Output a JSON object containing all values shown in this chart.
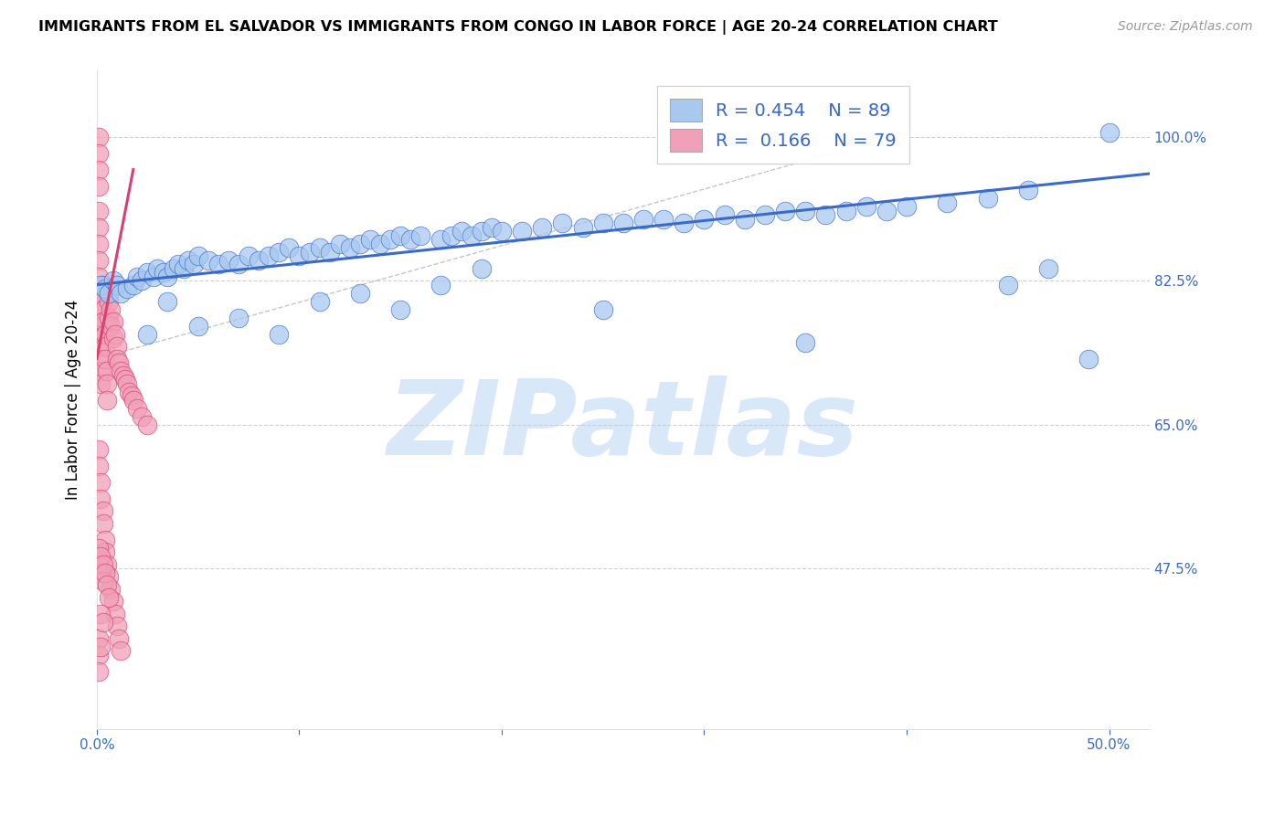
{
  "title": "IMMIGRANTS FROM EL SALVADOR VS IMMIGRANTS FROM CONGO IN LABOR FORCE | AGE 20-24 CORRELATION CHART",
  "source": "Source: ZipAtlas.com",
  "ylabel": "In Labor Force | Age 20-24",
  "xlim": [
    0.0,
    0.52
  ],
  "ylim": [
    0.28,
    1.08
  ],
  "yticks_right": [
    0.475,
    0.65,
    0.825,
    1.0
  ],
  "yticklabels_right": [
    "47.5%",
    "65.0%",
    "82.5%",
    "100.0%"
  ],
  "color_salvador": "#a8c8f0",
  "color_congo": "#f0a0b8",
  "color_trend_salvador": "#3a6bc9",
  "color_trend_congo": "#d94070",
  "color_blue": "#3a6bc9",
  "watermark_color": "#d8e8f8",
  "sal_trend": [
    0.0,
    0.52,
    0.82,
    0.955
  ],
  "con_trend": [
    0.0,
    0.018,
    0.73,
    0.96
  ],
  "ref_line": [
    0.0,
    0.4,
    0.73,
    1.005
  ],
  "sal_x": [
    0.002,
    0.004,
    0.006,
    0.008,
    0.01,
    0.012,
    0.015,
    0.018,
    0.02,
    0.022,
    0.025,
    0.028,
    0.03,
    0.033,
    0.035,
    0.038,
    0.04,
    0.043,
    0.045,
    0.048,
    0.05,
    0.055,
    0.06,
    0.065,
    0.07,
    0.075,
    0.08,
    0.085,
    0.09,
    0.095,
    0.1,
    0.105,
    0.11,
    0.115,
    0.12,
    0.125,
    0.13,
    0.135,
    0.14,
    0.145,
    0.15,
    0.155,
    0.16,
    0.17,
    0.175,
    0.18,
    0.185,
    0.19,
    0.195,
    0.2,
    0.21,
    0.22,
    0.23,
    0.24,
    0.25,
    0.26,
    0.27,
    0.28,
    0.29,
    0.3,
    0.31,
    0.32,
    0.33,
    0.34,
    0.35,
    0.36,
    0.37,
    0.38,
    0.39,
    0.4,
    0.42,
    0.44,
    0.46,
    0.025,
    0.035,
    0.05,
    0.07,
    0.09,
    0.11,
    0.13,
    0.15,
    0.17,
    0.19,
    0.25,
    0.35,
    0.45,
    0.47,
    0.49,
    0.5
  ],
  "sal_y": [
    0.82,
    0.815,
    0.81,
    0.825,
    0.82,
    0.81,
    0.815,
    0.82,
    0.83,
    0.825,
    0.835,
    0.83,
    0.84,
    0.835,
    0.83,
    0.84,
    0.845,
    0.84,
    0.85,
    0.845,
    0.855,
    0.85,
    0.845,
    0.85,
    0.845,
    0.855,
    0.85,
    0.855,
    0.86,
    0.865,
    0.855,
    0.86,
    0.865,
    0.86,
    0.87,
    0.865,
    0.87,
    0.875,
    0.87,
    0.875,
    0.88,
    0.875,
    0.88,
    0.875,
    0.88,
    0.885,
    0.88,
    0.885,
    0.89,
    0.885,
    0.885,
    0.89,
    0.895,
    0.89,
    0.895,
    0.895,
    0.9,
    0.9,
    0.895,
    0.9,
    0.905,
    0.9,
    0.905,
    0.91,
    0.91,
    0.905,
    0.91,
    0.915,
    0.91,
    0.915,
    0.92,
    0.925,
    0.935,
    0.76,
    0.8,
    0.77,
    0.78,
    0.76,
    0.8,
    0.81,
    0.79,
    0.82,
    0.84,
    0.79,
    0.75,
    0.82,
    0.84,
    0.73,
    1.005
  ],
  "con_x": [
    0.001,
    0.001,
    0.001,
    0.001,
    0.001,
    0.001,
    0.001,
    0.001,
    0.001,
    0.001,
    0.002,
    0.002,
    0.002,
    0.002,
    0.002,
    0.002,
    0.002,
    0.003,
    0.003,
    0.003,
    0.003,
    0.004,
    0.004,
    0.004,
    0.005,
    0.005,
    0.005,
    0.006,
    0.006,
    0.007,
    0.007,
    0.008,
    0.008,
    0.009,
    0.01,
    0.01,
    0.011,
    0.012,
    0.013,
    0.014,
    0.015,
    0.016,
    0.017,
    0.018,
    0.02,
    0.022,
    0.025,
    0.001,
    0.001,
    0.002,
    0.002,
    0.003,
    0.003,
    0.004,
    0.004,
    0.005,
    0.006,
    0.007,
    0.008,
    0.009,
    0.01,
    0.011,
    0.012,
    0.001,
    0.001,
    0.002,
    0.002,
    0.003,
    0.003,
    0.004,
    0.005,
    0.006,
    0.001,
    0.001,
    0.001,
    0.002,
    0.002,
    0.003
  ],
  "con_y": [
    1.0,
    0.98,
    0.96,
    0.94,
    0.91,
    0.89,
    0.87,
    0.85,
    0.83,
    0.81,
    0.79,
    0.775,
    0.76,
    0.745,
    0.73,
    0.715,
    0.7,
    0.82,
    0.805,
    0.79,
    0.775,
    0.76,
    0.745,
    0.73,
    0.715,
    0.7,
    0.68,
    0.8,
    0.78,
    0.79,
    0.77,
    0.775,
    0.755,
    0.76,
    0.745,
    0.73,
    0.725,
    0.715,
    0.71,
    0.705,
    0.7,
    0.69,
    0.685,
    0.68,
    0.67,
    0.66,
    0.65,
    0.62,
    0.6,
    0.58,
    0.56,
    0.545,
    0.53,
    0.51,
    0.495,
    0.48,
    0.465,
    0.45,
    0.435,
    0.42,
    0.405,
    0.39,
    0.375,
    0.5,
    0.48,
    0.49,
    0.47,
    0.48,
    0.46,
    0.47,
    0.455,
    0.44,
    0.39,
    0.37,
    0.35,
    0.38,
    0.42,
    0.41
  ]
}
